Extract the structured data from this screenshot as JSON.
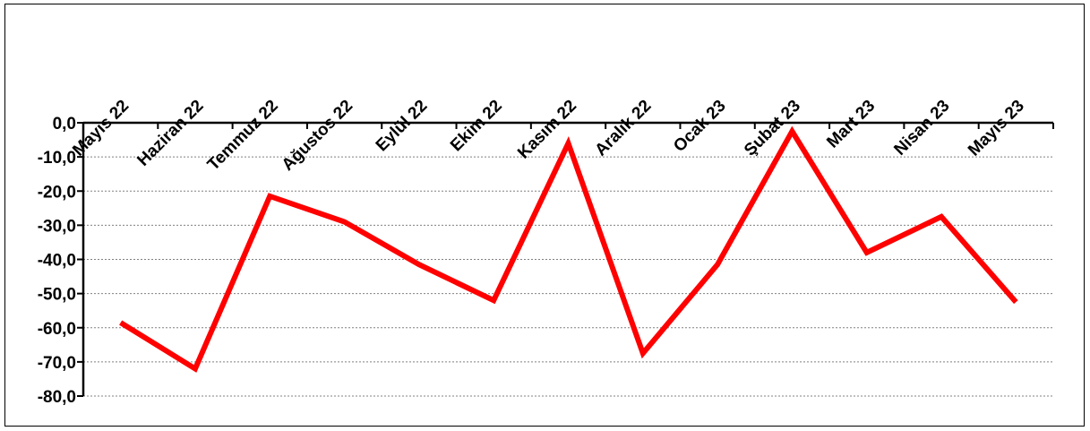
{
  "chart_data": {
    "type": "line",
    "categories": [
      "Mayıs 22",
      "Haziran 22",
      "Temmuz 22",
      "Ağustos 22",
      "Eylül 22",
      "Ekim 22",
      "Kasım 22",
      "Aralık 22",
      "Ocak 23",
      "Şubat 23",
      "Mart 23",
      "Nisan 23",
      "Mayıs 23"
    ],
    "series": [
      {
        "values": [
          -58.5,
          -72.0,
          -21.5,
          -29.0,
          -41.5,
          -52.0,
          -6.0,
          -67.5,
          -41.5,
          -2.5,
          -38.0,
          -27.5,
          -52.5
        ]
      }
    ],
    "ylim": [
      -80,
      0
    ],
    "yticks": [
      0,
      -10,
      -20,
      -30,
      -40,
      -50,
      -60,
      -70,
      -80
    ],
    "ytick_labels": [
      "0,0",
      "-10,0",
      "-20,0",
      "-30,0",
      "-40,0",
      "-50,0",
      "-60,0",
      "-70,0",
      "-80,0"
    ],
    "x_axis_position": "top",
    "grid": "horizontal dotted",
    "legend": "none",
    "colors": {
      "line": "#ff0000",
      "grid": "#808080",
      "axis": "#000000"
    }
  }
}
